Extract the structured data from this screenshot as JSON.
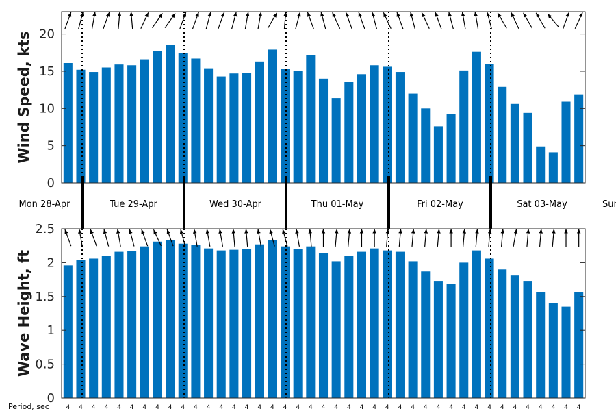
{
  "chart_data": [
    {
      "type": "bar",
      "ylabel": "Wind Speed, kts",
      "ylim": [
        0,
        23
      ],
      "yticks": [
        0,
        5,
        10,
        15,
        20
      ],
      "values": [
        16.1,
        15.2,
        14.9,
        15.5,
        15.9,
        15.8,
        16.6,
        17.7,
        18.5,
        17.4,
        16.7,
        15.4,
        14.3,
        14.7,
        14.8,
        16.3,
        17.9,
        15.3,
        15.0,
        17.2,
        14.0,
        11.4,
        13.6,
        14.6,
        15.8,
        15.6,
        14.9,
        12.0,
        10.0,
        7.6,
        9.2,
        15.1,
        17.6,
        16.0,
        12.9,
        10.6,
        9.4,
        4.9,
        4.1,
        10.9,
        11.9
      ],
      "direction_arrows": "wind direction arrows along top of panel",
      "grid": false
    },
    {
      "type": "bar",
      "ylabel": "Wave Height, ft",
      "ylim": [
        0,
        2.5
      ],
      "yticks": [
        "0",
        "0.5",
        "1",
        "1.5",
        "2",
        "2.5"
      ],
      "values": [
        1.96,
        2.04,
        2.06,
        2.1,
        2.16,
        2.17,
        2.24,
        2.31,
        2.33,
        2.28,
        2.26,
        2.21,
        2.18,
        2.19,
        2.2,
        2.27,
        2.33,
        2.24,
        2.2,
        2.24,
        2.14,
        2.02,
        2.1,
        2.16,
        2.21,
        2.18,
        2.16,
        2.02,
        1.87,
        1.73,
        1.69,
        2.0,
        2.18,
        2.06,
        1.9,
        1.81,
        1.73,
        1.56,
        1.4,
        1.35,
        1.56
      ],
      "direction_arrows": "wave direction arrows along top of panel",
      "grid": false
    }
  ],
  "days": [
    "Mon 28-Apr",
    "Tue 29-Apr",
    "Wed 30-Apr",
    "Thu 01-May",
    "Fri 02-May",
    "Sat 03-May",
    "Sun"
  ],
  "period_label": "Period, sec",
  "periods": [
    4,
    4,
    4,
    4,
    4,
    4,
    4,
    4,
    4,
    4,
    4,
    4,
    4,
    4,
    4,
    4,
    4,
    4,
    4,
    4,
    4,
    4,
    4,
    4,
    4,
    4,
    4,
    4,
    4,
    4,
    4,
    4,
    4,
    4,
    4,
    4,
    4,
    4,
    4,
    4,
    4
  ],
  "bar_color": "#0072bd",
  "wind_dirs": [
    200,
    195,
    190,
    200,
    185,
    175,
    205,
    215,
    215,
    200,
    200,
    195,
    200,
    195,
    190,
    190,
    210,
    185,
    195,
    160,
    165,
    155,
    160,
    160,
    165,
    155,
    160,
    165,
    155,
    160,
    165,
    170,
    170,
    165,
    150,
    155,
    150,
    150,
    140,
    200,
    205
  ],
  "wave_dirs": [
    340,
    350,
    340,
    345,
    350,
    345,
    340,
    335,
    340,
    345,
    350,
    350,
    350,
    355,
    355,
    350,
    345,
    345,
    350,
    355,
    0,
    5,
    5,
    0,
    0,
    5,
    5,
    5,
    5,
    5,
    0,
    5,
    5,
    5,
    5,
    10,
    5,
    5,
    5,
    0,
    0
  ]
}
